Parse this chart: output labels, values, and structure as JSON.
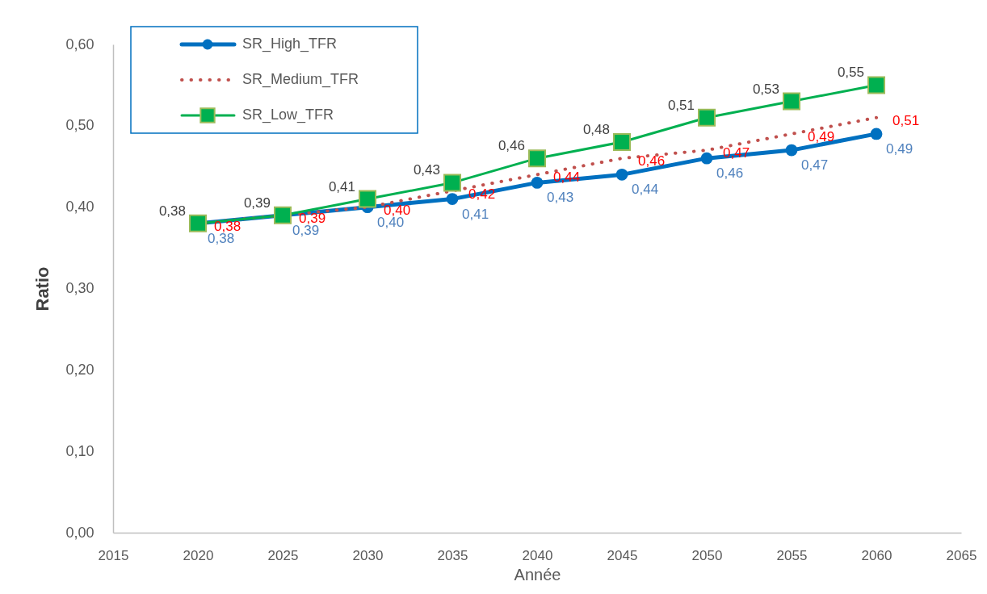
{
  "chart_data": {
    "type": "line",
    "xlabel": "Année",
    "ylabel": "Ratio",
    "legend": "top left",
    "x": [
      2020,
      2025,
      2030,
      2035,
      2040,
      2045,
      2050,
      2055,
      2060
    ],
    "xlim": [
      2015,
      2065
    ],
    "xticks": [
      2015,
      2020,
      2025,
      2030,
      2035,
      2040,
      2045,
      2050,
      2055,
      2060,
      2065
    ],
    "ylim": [
      0,
      0.6
    ],
    "yticks": [
      {
        "value": 0,
        "label": "0,00"
      },
      {
        "value": 0.1,
        "label": "0,10"
      },
      {
        "value": 0.2,
        "label": "0,20"
      },
      {
        "value": 0.3,
        "label": "0,30"
      },
      {
        "value": 0.4,
        "label": "0,40"
      },
      {
        "value": 0.5,
        "label": "0,50"
      },
      {
        "value": 0.6,
        "label": "0,60"
      }
    ],
    "series": [
      {
        "name": "SR_High_TFR",
        "color": "#0070c0",
        "marker": "circle",
        "line_style": "solid",
        "values": [
          0.38,
          0.39,
          0.4,
          0.41,
          0.43,
          0.44,
          0.46,
          0.47,
          0.49
        ],
        "value_labels": [
          "0,38",
          "0,39",
          "0,40",
          "0,41",
          "0,43",
          "0,44",
          "0,46",
          "0,47",
          "0,49"
        ]
      },
      {
        "name": "SR_Medium_TFR",
        "color": "#c0504d",
        "marker": "none",
        "line_style": "dotted",
        "values": [
          0.38,
          0.39,
          0.4,
          0.42,
          0.44,
          0.46,
          0.47,
          0.49,
          0.51
        ],
        "value_labels": [
          "0,38",
          "0,39",
          "0,40",
          "0,42",
          "0,44",
          "0,46",
          "0,47",
          "0,49",
          "0,51"
        ]
      },
      {
        "name": "SR_Low_TFR",
        "color": "#00b050",
        "marker": "square",
        "line_style": "solid",
        "values": [
          0.38,
          0.39,
          0.41,
          0.43,
          0.46,
          0.48,
          0.51,
          0.53,
          0.55
        ],
        "value_labels": [
          "0,38",
          "0,39",
          "0,41",
          "0,43",
          "0,46",
          "0,48",
          "0,51",
          "0,53",
          "0,55"
        ]
      }
    ]
  }
}
